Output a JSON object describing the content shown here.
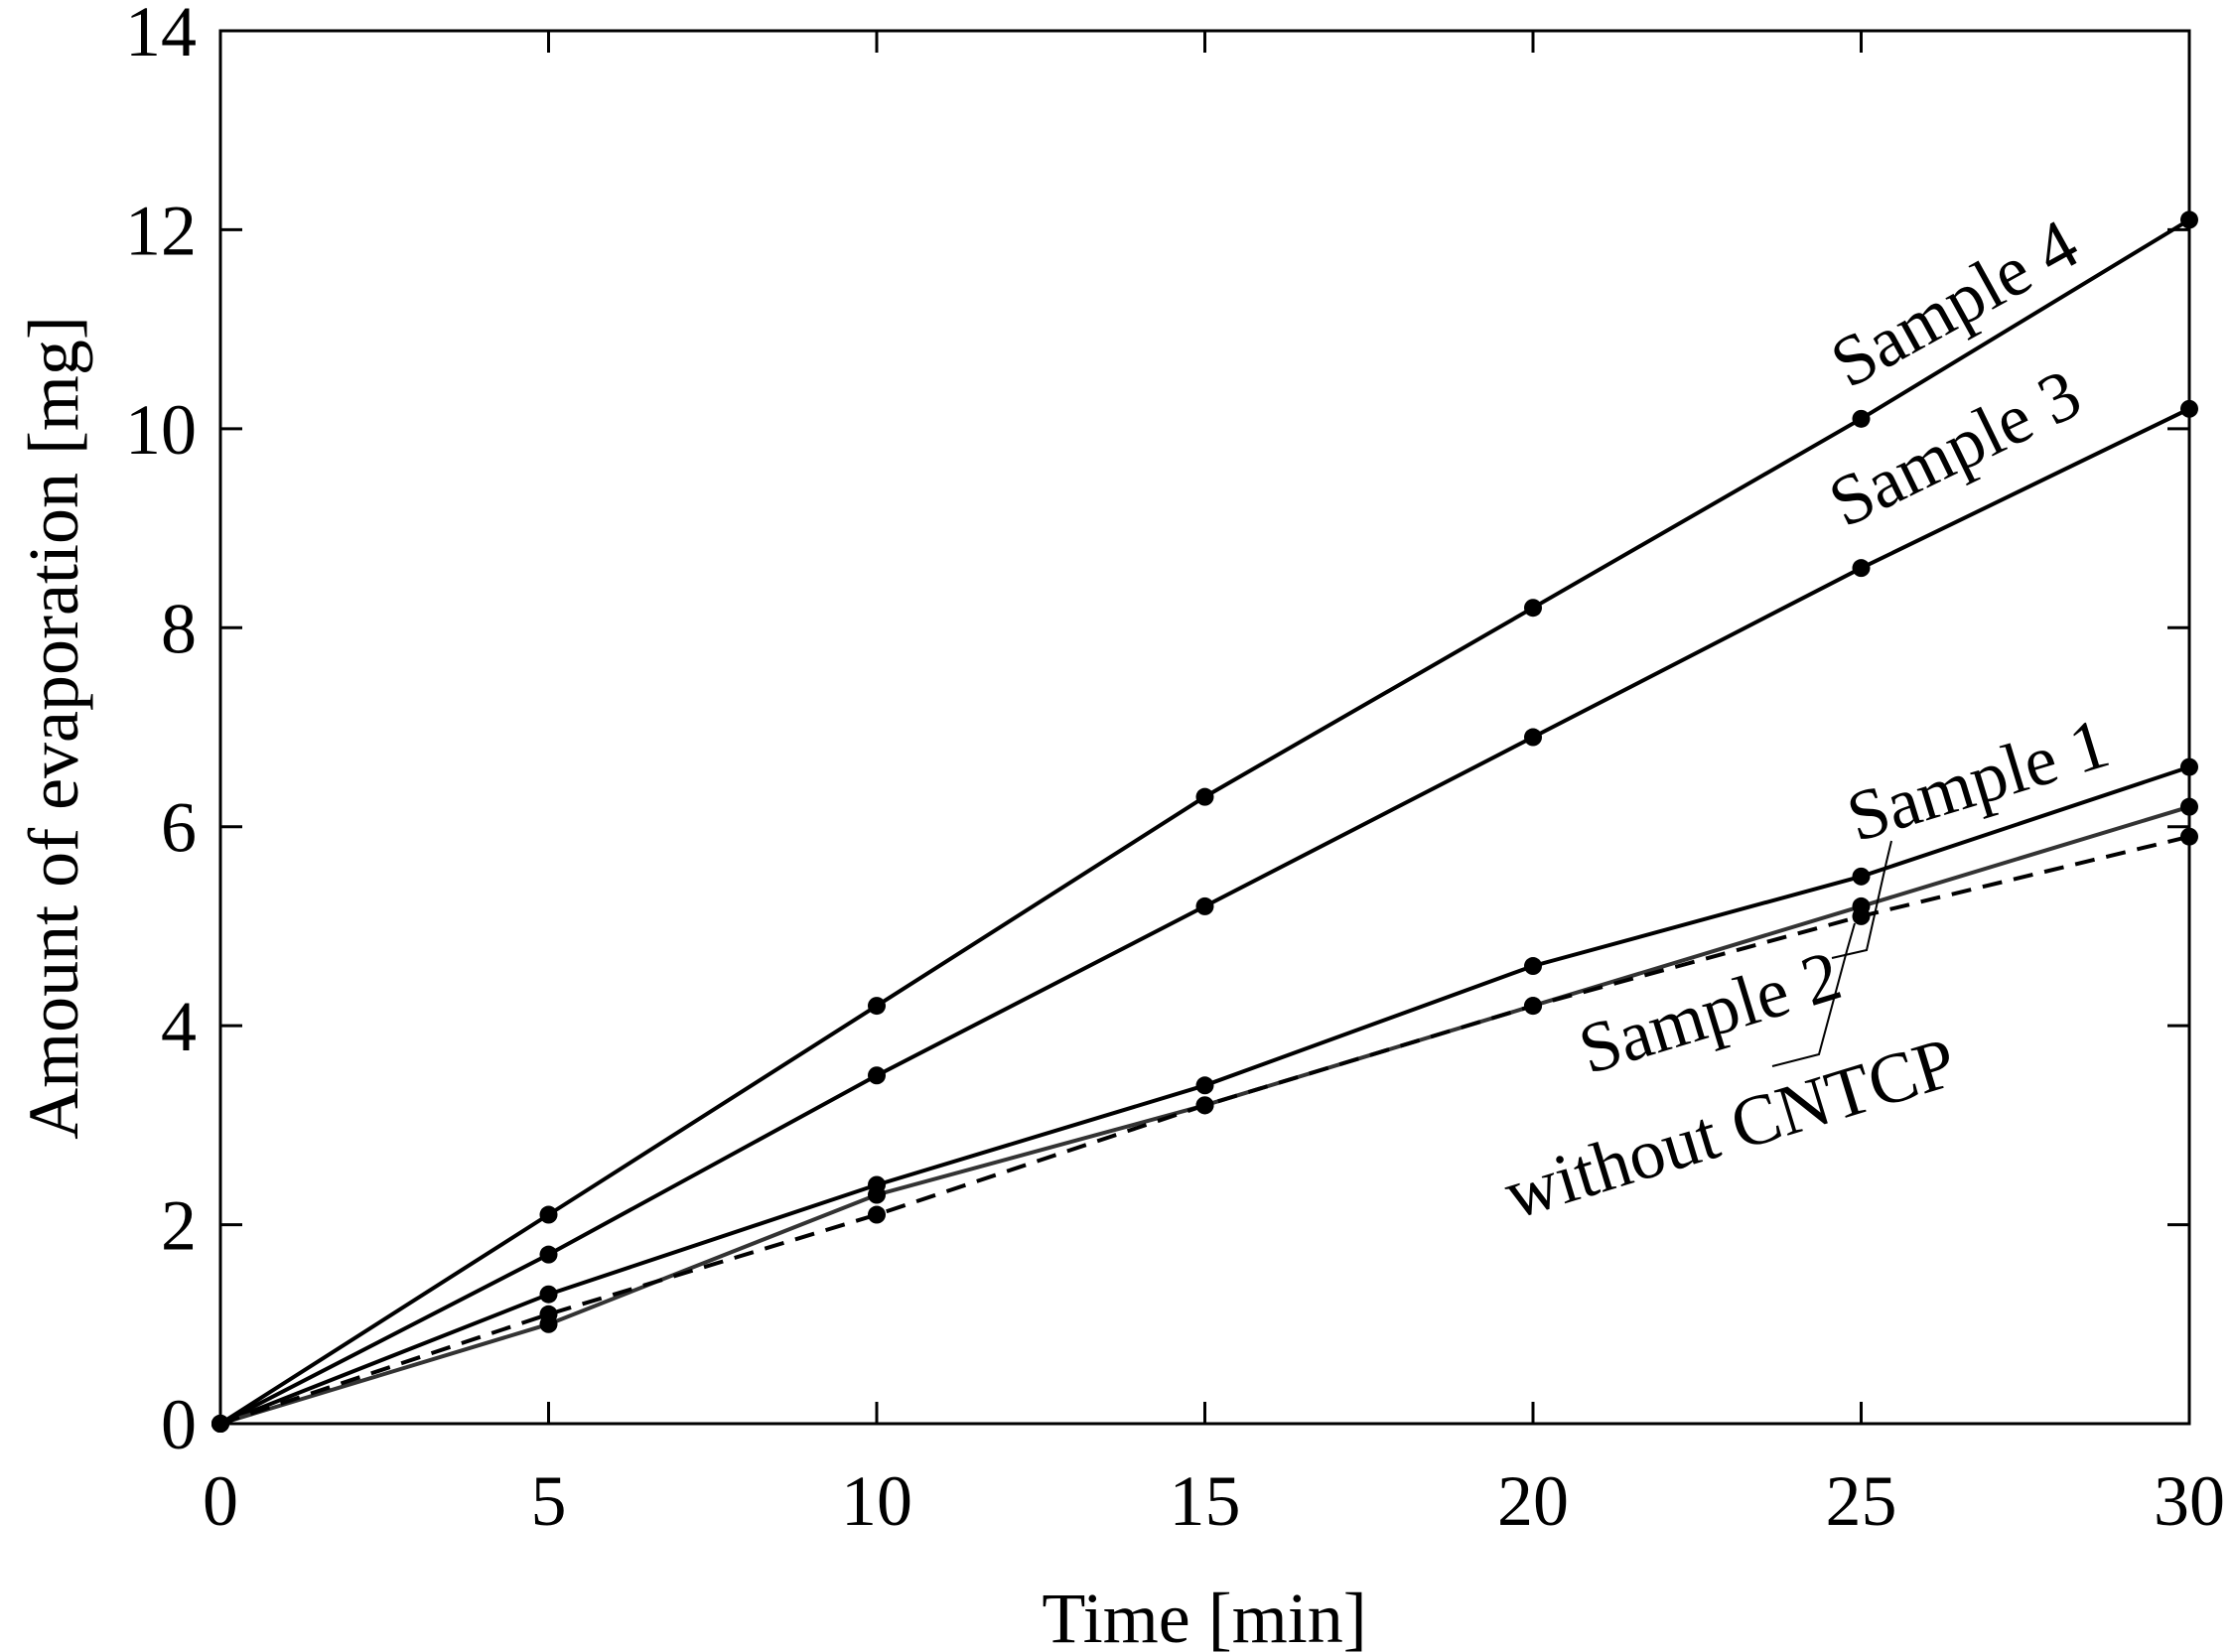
{
  "chart_data": {
    "type": "line",
    "title": "",
    "xlabel": "Time [min]",
    "ylabel": "Amount of evaporation [mg]",
    "xlim": [
      0,
      30
    ],
    "ylim": [
      0,
      14
    ],
    "grid": false,
    "x": [
      0,
      5,
      10,
      15,
      20,
      25,
      30
    ],
    "xticks": [
      0,
      5,
      10,
      15,
      20,
      25,
      30
    ],
    "yticks": [
      0,
      2,
      4,
      6,
      8,
      10,
      12,
      14
    ],
    "series": [
      {
        "name": "Sample 4",
        "values": [
          0,
          2.1,
          4.2,
          6.3,
          8.2,
          10.1,
          12.1
        ],
        "style": "solid",
        "color": "#000000"
      },
      {
        "name": "Sample 3",
        "values": [
          0,
          1.7,
          3.5,
          5.2,
          6.9,
          8.6,
          10.2
        ],
        "style": "solid",
        "color": "#000000"
      },
      {
        "name": "Sample 1",
        "values": [
          0,
          1.3,
          2.4,
          3.4,
          4.6,
          5.5,
          6.6
        ],
        "style": "solid",
        "color": "#000000"
      },
      {
        "name": "Sample 2",
        "values": [
          0,
          1.0,
          2.3,
          3.2,
          4.2,
          5.2,
          6.2
        ],
        "style": "solid",
        "color": "#333333"
      },
      {
        "name": "without CNTCP",
        "values": [
          0,
          1.1,
          2.1,
          3.2,
          4.2,
          5.1,
          5.9
        ],
        "style": "dashed",
        "color": "#000000"
      }
    ],
    "annotations": [
      "Sample 4",
      "Sample 3",
      "Sample 1",
      "Sample 2",
      "without CNTCP"
    ]
  }
}
